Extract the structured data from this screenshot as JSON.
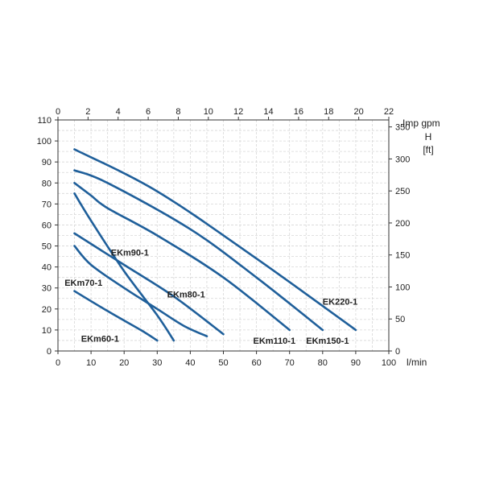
{
  "chart_data": {
    "type": "line",
    "xlabel": "l/min",
    "ylabel_left": "",
    "ylabel_right": "H\n[ft]",
    "xlabel_top": "Imp gpm",
    "xlim": [
      0,
      100
    ],
    "ylim": [
      0,
      110
    ],
    "x_ticks": [
      0,
      10,
      20,
      30,
      40,
      50,
      60,
      70,
      80,
      90,
      100
    ],
    "y_ticks": [
      0,
      10,
      20,
      30,
      40,
      50,
      60,
      70,
      80,
      90,
      100,
      110
    ],
    "top_ticks": [
      0,
      2,
      4,
      6,
      8,
      10,
      12,
      14,
      16,
      18,
      20,
      22
    ],
    "top_lim": [
      0,
      22
    ],
    "right_ticks": [
      0,
      50,
      100,
      150,
      200,
      250,
      300,
      350
    ],
    "right_lim": [
      0,
      360.9
    ],
    "grid": true,
    "series": [
      {
        "name": "EKm60-1",
        "points": [
          [
            5,
            28.5
          ],
          [
            15,
            19
          ],
          [
            25,
            10
          ],
          [
            30,
            5
          ]
        ]
      },
      {
        "name": "EKm70-1",
        "points": [
          [
            5,
            50
          ],
          [
            10,
            41
          ],
          [
            20,
            30
          ],
          [
            30,
            20
          ],
          [
            38,
            12
          ],
          [
            45,
            7
          ]
        ]
      },
      {
        "name": "EKm80-1",
        "points": [
          [
            5,
            56
          ],
          [
            20,
            41
          ],
          [
            35,
            26
          ],
          [
            50,
            8
          ]
        ]
      },
      {
        "name": "EKm90-1",
        "points": [
          [
            5,
            75
          ],
          [
            10,
            62
          ],
          [
            20,
            38
          ],
          [
            30,
            17
          ],
          [
            35,
            5
          ]
        ]
      },
      {
        "name": "EKm110-1",
        "points": [
          [
            5,
            80
          ],
          [
            10,
            74
          ],
          [
            15,
            68
          ],
          [
            30,
            55
          ],
          [
            50,
            35
          ],
          [
            70,
            10
          ]
        ]
      },
      {
        "name": "EKm150-1",
        "points": [
          [
            5,
            86
          ],
          [
            15,
            80
          ],
          [
            40,
            58
          ],
          [
            60,
            35
          ],
          [
            80,
            10
          ]
        ]
      },
      {
        "name": "EK220-1",
        "points": [
          [
            5,
            96
          ],
          [
            30,
            76
          ],
          [
            60,
            44
          ],
          [
            90,
            10
          ]
        ]
      }
    ],
    "labels": [
      "EKm60-1",
      "EKm70-1",
      "EKm80-1",
      "EKm90-1",
      "EKm110-1",
      "EKm150-1",
      "EK220-1"
    ],
    "units": {
      "top": "Imp gpm",
      "right_top": "H",
      "right_bottom": "[ft]",
      "bottom": "l/min"
    }
  }
}
